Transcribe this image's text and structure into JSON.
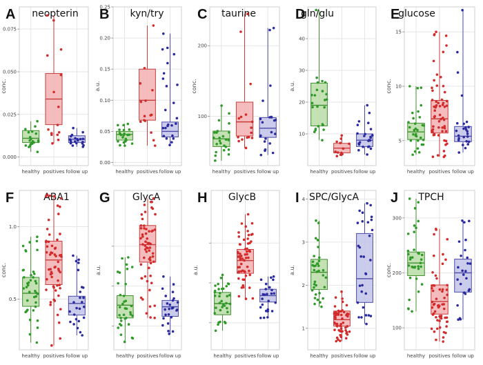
{
  "figure": {
    "categories": [
      "healthy",
      "positives",
      "follow up"
    ],
    "colors": {
      "healthy": {
        "fill": "#b9dca6",
        "stroke": "#3f8f2e",
        "dot": "#2f9a2a"
      },
      "positives": {
        "fill": "#f2b0b0",
        "stroke": "#c93a3a",
        "dot": "#d32b2b"
      },
      "follow up": {
        "fill": "#c2c2e8",
        "stroke": "#4a4aa8",
        "dot": "#2a2aa0"
      },
      "grid": "#e6e6e6",
      "frame": "#cfcfcf"
    }
  },
  "chart_data": [
    {
      "type": "box",
      "letter": "A",
      "title": "neopterin",
      "ylabel": "conc.",
      "ylim": [
        -0.005,
        0.088
      ],
      "ticks": [
        0.0,
        0.025,
        0.05,
        0.075
      ],
      "tick_labels": [
        "0.000",
        "0.025",
        "0.050",
        "0.075"
      ],
      "boxes": [
        {
          "category": "healthy",
          "min": 0.003,
          "q1": 0.0085,
          "median": 0.011,
          "q3": 0.0155,
          "max": 0.021,
          "n": 22
        },
        {
          "category": "positives",
          "min": 0.008,
          "q1": 0.019,
          "median": 0.034,
          "q3": 0.049,
          "max": 0.083,
          "n": 15
        },
        {
          "category": "follow up",
          "min": 0.006,
          "q1": 0.0085,
          "median": 0.0105,
          "q3": 0.0125,
          "max": 0.017,
          "n": 20
        }
      ]
    },
    {
      "type": "box",
      "letter": "B",
      "title": "kyn/try",
      "ylabel": "a.u.",
      "ylim": [
        -0.005,
        0.25
      ],
      "ticks": [
        0.0,
        0.05,
        0.1,
        0.15,
        0.2,
        0.25
      ],
      "tick_labels": [
        "0.00",
        "0.05",
        "0.10",
        "0.15",
        "0.20",
        "0.25"
      ],
      "boxes": [
        {
          "category": "healthy",
          "min": 0.027,
          "q1": 0.036,
          "median": 0.045,
          "q3": 0.05,
          "max": 0.062,
          "n": 22
        },
        {
          "category": "positives",
          "min": 0.027,
          "q1": 0.068,
          "median": 0.1,
          "q3": 0.15,
          "max": 0.22,
          "n": 15
        },
        {
          "category": "follow up",
          "min": 0.028,
          "q1": 0.041,
          "median": 0.05,
          "q3": 0.065,
          "max": 0.207,
          "n": 24
        }
      ]
    },
    {
      "type": "box",
      "letter": "C",
      "title": "taurine",
      "ylabel": "conc.",
      "ylim": [
        30,
        255
      ],
      "ticks": [
        100,
        200
      ],
      "tick_labels": [
        "100",
        "200"
      ],
      "boxes": [
        {
          "category": "healthy",
          "min": 37,
          "q1": 57,
          "median": 68,
          "q3": 79,
          "max": 115,
          "n": 24
        },
        {
          "category": "positives",
          "min": 55,
          "q1": 72,
          "median": 92,
          "q3": 120,
          "max": 245,
          "n": 16
        },
        {
          "category": "follow up",
          "min": 45,
          "q1": 70,
          "median": 83,
          "q3": 98,
          "max": 225,
          "n": 22
        }
      ]
    },
    {
      "type": "box",
      "letter": "D",
      "title": "gln/glu",
      "ylabel": "a.u.",
      "ylim": [
        0,
        50
      ],
      "ticks": [
        10,
        20,
        30,
        40
      ],
      "tick_labels": [
        "10",
        "20",
        "30",
        "40"
      ],
      "boxes": [
        {
          "category": "healthy",
          "min": 8,
          "q1": 12.5,
          "median": 19,
          "q3": 26,
          "max": 49,
          "n": 24
        },
        {
          "category": "positives",
          "min": 3,
          "q1": 4,
          "median": 5.5,
          "q3": 7,
          "max": 9.5,
          "n": 12
        },
        {
          "category": "follow up",
          "min": 3.5,
          "q1": 6,
          "median": 8,
          "q3": 10,
          "max": 19,
          "n": 24
        }
      ]
    },
    {
      "type": "box",
      "letter": "E",
      "title": "glucose",
      "ylabel": "conc.",
      "ylim": [
        2.7,
        17.3
      ],
      "ticks": [
        5,
        10,
        15
      ],
      "tick_labels": [
        "5",
        "10",
        "15"
      ],
      "boxes": [
        {
          "category": "healthy",
          "min": 3.7,
          "q1": 5.1,
          "median": 5.8,
          "q3": 6.6,
          "max": 10,
          "n": 30
        },
        {
          "category": "positives",
          "min": 3.5,
          "q1": 5.7,
          "median": 7.0,
          "q3": 8.7,
          "max": 15,
          "n": 60
        },
        {
          "category": "follow up",
          "min": 3.9,
          "q1": 4.9,
          "median": 5.4,
          "q3": 6.3,
          "max": 17,
          "n": 25
        }
      ]
    },
    {
      "type": "box",
      "letter": "F",
      "title": "ABA1",
      "ylabel": "conc.",
      "ylim": [
        0.15,
        1.25
      ],
      "ticks": [
        0.5,
        1.0
      ],
      "tick_labels": [
        "0.5",
        "1.0"
      ],
      "boxes": [
        {
          "category": "healthy",
          "min": 0.2,
          "q1": 0.45,
          "median": 0.54,
          "q3": 0.65,
          "max": 0.93,
          "n": 40
        },
        {
          "category": "positives",
          "min": 0.18,
          "q1": 0.6,
          "median": 0.77,
          "q3": 0.9,
          "max": 1.22,
          "n": 60
        },
        {
          "category": "follow up",
          "min": 0.25,
          "q1": 0.39,
          "median": 0.47,
          "q3": 0.52,
          "max": 0.8,
          "n": 25
        }
      ]
    },
    {
      "type": "box",
      "letter": "G",
      "title": "GlycA",
      "ylabel": "a.u.",
      "ylim": [
        0,
        10
      ],
      "ticks": [
        1.5,
        4.0,
        6.5
      ],
      "tick_labels": [
        "",
        "",
        ""
      ],
      "boxes": [
        {
          "category": "healthy",
          "min": 0.5,
          "q1": 2.0,
          "median": 2.8,
          "q3": 3.4,
          "max": 5.8,
          "n": 35
        },
        {
          "category": "positives",
          "min": 2.0,
          "q1": 5.5,
          "median": 6.6,
          "q3": 7.8,
          "max": 9.5,
          "n": 60
        },
        {
          "category": "follow up",
          "min": 1.0,
          "q1": 2.1,
          "median": 2.7,
          "q3": 3.1,
          "max": 4.6,
          "n": 25
        }
      ]
    },
    {
      "type": "box",
      "letter": "H",
      "title": "GlycB",
      "ylabel": "a.u.",
      "ylim": [
        0,
        10
      ],
      "ticks": [
        1.7,
        4.2,
        6.7
      ],
      "tick_labels": [
        "",
        "",
        ""
      ],
      "boxes": [
        {
          "category": "healthy",
          "min": 1.2,
          "q1": 2.2,
          "median": 2.9,
          "q3": 3.6,
          "max": 4.7,
          "n": 35
        },
        {
          "category": "positives",
          "min": 3.2,
          "q1": 4.8,
          "median": 5.6,
          "q3": 6.3,
          "max": 8.5,
          "n": 60
        },
        {
          "category": "follow up",
          "min": 2.0,
          "q1": 3.0,
          "median": 3.4,
          "q3": 3.8,
          "max": 4.6,
          "n": 25
        }
      ]
    },
    {
      "type": "box",
      "letter": "I",
      "title": "SPC/GlycA",
      "ylabel": "a.u.",
      "ylim": [
        0.5,
        4.2
      ],
      "ticks": [
        1,
        2,
        3,
        4
      ],
      "tick_labels": [
        "1",
        "2",
        "3",
        "4"
      ],
      "boxes": [
        {
          "category": "healthy",
          "min": 1.5,
          "q1": 1.9,
          "median": 2.3,
          "q3": 2.6,
          "max": 3.5,
          "n": 35
        },
        {
          "category": "positives",
          "min": 0.7,
          "q1": 1.05,
          "median": 1.2,
          "q3": 1.4,
          "max": 1.85,
          "n": 60
        },
        {
          "category": "follow up",
          "min": 1.1,
          "q1": 1.6,
          "median": 2.15,
          "q3": 3.2,
          "max": 3.9,
          "n": 30
        }
      ]
    },
    {
      "type": "box",
      "letter": "J",
      "title": "TPCH",
      "ylabel": "conc.",
      "ylim": [
        60,
        350
      ],
      "ticks": [
        100,
        200,
        300
      ],
      "tick_labels": [
        "100",
        "200",
        "300"
      ],
      "boxes": [
        {
          "category": "healthy",
          "min": 130,
          "q1": 195,
          "median": 218,
          "q3": 238,
          "max": 335,
          "n": 35
        },
        {
          "category": "positives",
          "min": 75,
          "q1": 125,
          "median": 148,
          "q3": 178,
          "max": 280,
          "n": 60
        },
        {
          "category": "follow up",
          "min": 115,
          "q1": 165,
          "median": 200,
          "q3": 225,
          "max": 295,
          "n": 25
        }
      ]
    }
  ]
}
